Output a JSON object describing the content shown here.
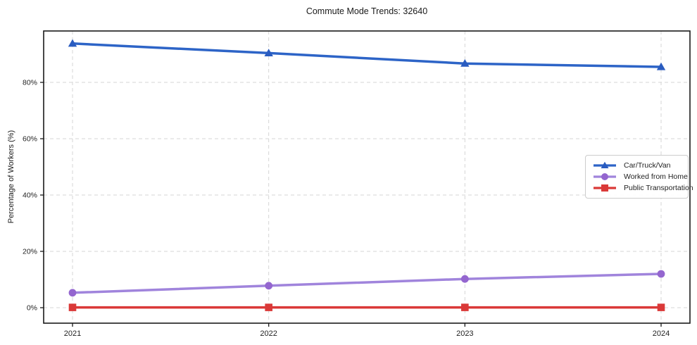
{
  "page": {
    "background": "#ffffff"
  },
  "chart_data": {
    "type": "line",
    "title": "Commute Mode Trends: 32640",
    "xlabel": "",
    "ylabel": "Percentage of Workers (%)",
    "categories": [
      "2021",
      "2022",
      "2023",
      "2024"
    ],
    "series": [
      {
        "name": "Car/Truck/Van",
        "marker": "triangle",
        "line_color": "#2d64c7",
        "marker_color": "#2a5cc0",
        "values": [
          93.8,
          90.4,
          86.7,
          85.5
        ]
      },
      {
        "name": "Worked from Home",
        "marker": "circle",
        "line_color": "#a084dc",
        "marker_color": "#9466cf",
        "values": [
          5.3,
          7.8,
          10.2,
          12.0
        ]
      },
      {
        "name": "Public Transportation",
        "marker": "square",
        "line_color": "#da3938",
        "marker_color": "#da3938",
        "values": [
          0.1,
          0.1,
          0.1,
          0.1
        ]
      }
    ],
    "y_ticks": [
      {
        "value": 0,
        "label": "0%"
      },
      {
        "value": 20,
        "label": "20%"
      },
      {
        "value": 40,
        "label": "40%"
      },
      {
        "value": 60,
        "label": "60%"
      },
      {
        "value": 80,
        "label": "80%"
      }
    ],
    "ylim": [
      -5.5,
      98.25
    ],
    "grid": true,
    "grid_style": "dashed",
    "grid_color": "#d6d6d6",
    "axis_color": "#1a1a1a",
    "legend_position": "center-right",
    "legend_labels": [
      "Car/Truck/Van",
      "Worked from Home",
      "Public Transportation"
    ]
  }
}
